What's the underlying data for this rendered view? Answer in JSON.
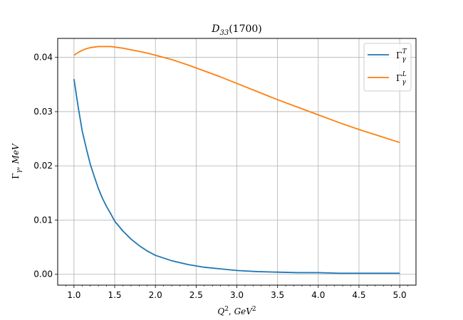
{
  "chart_data": {
    "type": "line",
    "title": "D33(1700)",
    "xlabel": "Q², GeV²",
    "ylabel": "Γγ, MeV",
    "xlim": [
      0.8,
      5.2
    ],
    "ylim": [
      -0.002,
      0.0435
    ],
    "grid": true,
    "legend_position": "top-right",
    "x_ticks": [
      "1.0",
      "1.5",
      "2.0",
      "2.5",
      "3.0",
      "3.5",
      "4.0",
      "4.5",
      "5.0"
    ],
    "y_ticks": [
      "0.00",
      "0.01",
      "0.02",
      "0.03",
      "0.04"
    ],
    "x": [
      1.0,
      1.05,
      1.1,
      1.15,
      1.2,
      1.25,
      1.3,
      1.35,
      1.4,
      1.45,
      1.5,
      1.6,
      1.7,
      1.8,
      1.9,
      2.0,
      2.2,
      2.4,
      2.6,
      2.8,
      3.0,
      3.25,
      3.5,
      3.75,
      4.0,
      4.25,
      4.5,
      4.75,
      5.0
    ],
    "series": [
      {
        "name": "Γγ^T",
        "color": "#1f77b4",
        "values": [
          0.036,
          0.031,
          0.0265,
          0.0233,
          0.0203,
          0.018,
          0.0158,
          0.014,
          0.0125,
          0.0112,
          0.0098,
          0.008,
          0.0065,
          0.0053,
          0.0043,
          0.0035,
          0.0025,
          0.0018,
          0.0013,
          0.001,
          0.0007,
          0.0005,
          0.0004,
          0.0003,
          0.0003,
          0.0002,
          0.0002,
          0.0002,
          0.0002
        ]
      },
      {
        "name": "Γγ^L",
        "color": "#ff7f0e",
        "values": [
          0.0404,
          0.0409,
          0.0413,
          0.0416,
          0.0418,
          0.0419,
          0.042,
          0.042,
          0.042,
          0.042,
          0.0419,
          0.0417,
          0.0414,
          0.0411,
          0.0408,
          0.0404,
          0.0396,
          0.0386,
          0.0375,
          0.0364,
          0.0352,
          0.0337,
          0.0322,
          0.0308,
          0.0294,
          0.028,
          0.0267,
          0.0255,
          0.0243
        ]
      }
    ]
  }
}
